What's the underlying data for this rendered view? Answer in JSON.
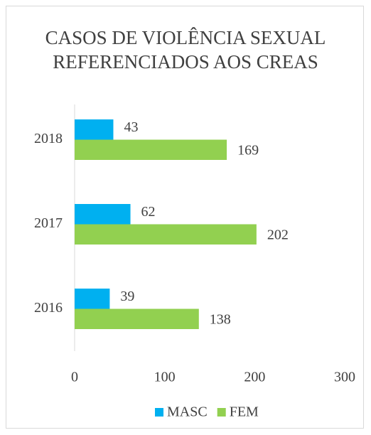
{
  "chart_data": {
    "type": "hbar",
    "title": "CASOS DE VIOLÊNCIA SEXUAL REFERENCIADOS AOS CREAS",
    "categories": [
      "2016",
      "2017",
      "2018"
    ],
    "series": [
      {
        "name": "MASC",
        "color": "#00b0f0",
        "values": [
          39,
          62,
          43
        ]
      },
      {
        "name": "FEM",
        "color": "#92d050",
        "values": [
          138,
          202,
          169
        ]
      }
    ],
    "xlim": [
      0,
      300
    ],
    "xticks": [
      0,
      100,
      200,
      300
    ],
    "grid": false,
    "legend": "bottom"
  }
}
